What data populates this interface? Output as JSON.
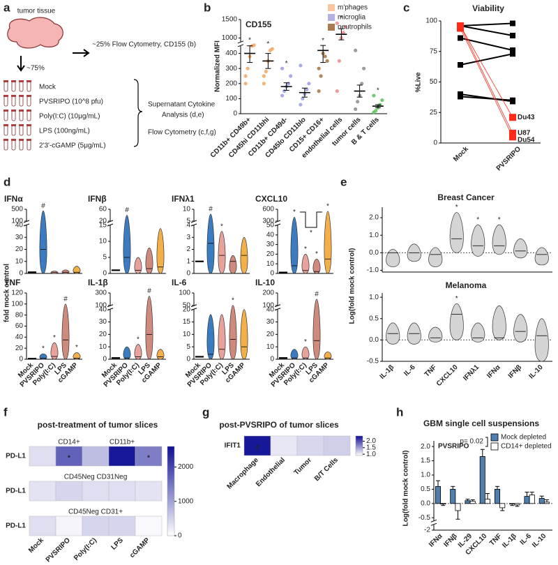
{
  "diagram": {
    "label": "a",
    "tumor": "tumor tissue",
    "flow": "~25% Flow Cytometry, CD155 (b)",
    "split": "~75%",
    "conditions": [
      "Mock",
      "PVSRIPO (10^8 pfu)",
      "Poly(I:C) (10μg/mL)",
      "LPS (100ng/mL)",
      "2'3'-cGAMP (5μg/mL)"
    ],
    "outputs": [
      "Supernatant Cytokine",
      "Analysis (d,e)",
      "Flow Cytometry (c,f,g)"
    ]
  },
  "chart_data": [
    {
      "type": "dot",
      "label": "b",
      "title": "CD155",
      "ylabel": "Normalized MFI",
      "categories": [
        "CD11b+ CD49b+",
        "CD45hi CD11bhi",
        "CD11b+ CD49d-",
        "CD45lo CD11blo",
        "CD15+ CD16+",
        "endothelial cells",
        "tumor cells",
        "B & T cells"
      ],
      "colors": [
        "#f5a55c",
        "#f5a55c",
        "#9b9ee0",
        "#9b9ee0",
        "#a4733f",
        "#f08c8c",
        "#8c8c8c",
        "#5cbf5c"
      ],
      "values": [
        400,
        350,
        180,
        140,
        420,
        1100,
        150,
        50
      ],
      "errors": [
        60,
        50,
        25,
        30,
        80,
        150,
        40,
        10
      ],
      "points": [
        [
          250,
          300,
          380,
          450,
          520,
          200
        ],
        [
          200,
          280,
          350,
          420,
          430,
          250
        ],
        [
          120,
          150,
          180,
          200,
          250,
          300
        ],
        [
          60,
          100,
          130,
          160,
          200,
          320
        ],
        [
          150,
          250,
          400,
          380,
          350,
          300
        ],
        [
          150,
          350,
          1000,
          1150,
          1300,
          1400
        ],
        [
          30,
          80,
          120,
          200,
          300,
          420
        ],
        [
          10,
          20,
          40,
          60,
          90,
          120
        ]
      ],
      "stars": [
        "*",
        "*",
        "*",
        null,
        "*",
        "*",
        null,
        "*"
      ],
      "legend": [
        {
          "name": "m'phages",
          "color": "#f8c7a0"
        },
        {
          "name": "microglia",
          "color": "#b4b3e0"
        },
        {
          "name": "neutrophils",
          "color": "#a97c50"
        }
      ],
      "ylim": [
        0,
        1500
      ],
      "ybreak": [
        450,
        900
      ],
      "yticks": [
        0,
        100,
        200,
        300,
        400,
        1000,
        1500
      ]
    },
    {
      "type": "line",
      "label": "c",
      "title": "Viability",
      "ylabel": "%Live",
      "categories": [
        "Mock",
        "PVSRIPO"
      ],
      "ylim": [
        0,
        100
      ],
      "yticks": [
        0,
        25,
        50,
        75,
        100
      ],
      "series": [
        {
          "color": "#000000",
          "values": [
            96,
            98
          ]
        },
        {
          "color": "#000000",
          "values": [
            96,
            88
          ]
        },
        {
          "color": "#000000",
          "values": [
            86,
            76
          ]
        },
        {
          "color": "#000000",
          "values": [
            64,
            73
          ]
        },
        {
          "color": "#000000",
          "values": [
            40,
            34
          ]
        },
        {
          "color": "#000000",
          "values": [
            38,
            35
          ]
        },
        {
          "name": "Du43",
          "color": "#ff2a1a",
          "values": [
            96,
            21
          ]
        },
        {
          "name": "U87",
          "color": "#ff2a1a",
          "values": [
            96,
            8
          ]
        },
        {
          "name": "Du54",
          "color": "#ff2a1a",
          "values": [
            94,
            5
          ]
        }
      ]
    },
    {
      "type": "violin",
      "label": "d",
      "title": "IFNα",
      "ylabel": "fold mock control",
      "colors": [
        "#000000",
        "#3b7bbf",
        "#e8a29c",
        "#cf8a7e",
        "#f3b04a"
      ],
      "values": [
        1,
        20,
        1,
        1,
        1
      ],
      "max": [
        1,
        450,
        2,
        3,
        6
      ],
      "marks": [
        null,
        "#",
        null,
        null,
        null
      ],
      "ylim": [
        0,
        500
      ],
      "ybreak": [
        40,
        100
      ],
      "yticks": [
        0,
        10,
        20,
        30,
        40,
        100,
        500
      ]
    },
    {
      "type": "violin",
      "title": "IFNβ",
      "colors": [
        "#000000",
        "#3b7bbf",
        "#e8a29c",
        "#cf8a7e",
        "#f3b04a"
      ],
      "values": [
        1,
        5,
        1,
        1.5,
        2
      ],
      "max": [
        1,
        40,
        5,
        8,
        14
      ],
      "marks": [
        null,
        "#",
        null,
        null,
        null
      ],
      "ylim": [
        0,
        60
      ],
      "ybreak": [
        15,
        20
      ],
      "yticks": [
        0,
        5,
        10,
        15,
        20,
        60
      ]
    },
    {
      "type": "violin",
      "title": "IFNλ1",
      "colors": [
        "#000000",
        "#3b7bbf",
        "#e8a29c",
        "#cf8a7e",
        "#f3b04a"
      ],
      "values": [
        1,
        2.5,
        1.5,
        1,
        1.5
      ],
      "max": [
        1,
        8,
        3.5,
        1.5,
        3
      ],
      "marks": [
        null,
        "#",
        "*",
        null,
        null
      ],
      "ylim": [
        0,
        10
      ],
      "ybreak": [
        4,
        5
      ],
      "yticks": [
        0,
        1,
        2,
        3,
        4,
        5,
        10
      ]
    },
    {
      "type": "violin",
      "title": "CXCL10",
      "colors": [
        "#000000",
        "#3b7bbf",
        "#e8a29c",
        "#cf8a7e",
        "#f3b04a"
      ],
      "values": [
        1,
        8,
        3,
        2,
        15
      ],
      "max": [
        1,
        400,
        20,
        15,
        550
      ],
      "marks": [
        null,
        "*",
        "*",
        "*",
        "*"
      ],
      "bracket": "*",
      "ylim": [
        0,
        600
      ],
      "ybreak": [
        50,
        300
      ],
      "yticks": [
        0,
        10,
        20,
        30,
        40,
        50,
        300,
        600
      ]
    },
    {
      "type": "violin",
      "title": "TNF",
      "categories": [
        "Mock",
        "PVSRIPO",
        "Poly(I:C)",
        "LPS",
        "cGAMP"
      ],
      "colors": [
        "#000000",
        "#3b7bbf",
        "#e8a29c",
        "#cf8a7e",
        "#f3b04a"
      ],
      "values": [
        1,
        2,
        5,
        35,
        2
      ],
      "max": [
        1,
        10,
        30,
        100,
        12
      ],
      "marks": [
        null,
        "*",
        "*",
        "#",
        "*"
      ],
      "ylim": [
        0,
        120
      ],
      "yticks": [
        0,
        20,
        40,
        60,
        80,
        100,
        120
      ]
    },
    {
      "type": "violin",
      "title": "IL-1β",
      "categories": [
        "Mock",
        "PVSRIPO",
        "Poly(I:C)",
        "LPS",
        "cGAMP"
      ],
      "colors": [
        "#000000",
        "#3b7bbf",
        "#e8a29c",
        "#cf8a7e",
        "#f3b04a"
      ],
      "values": [
        1,
        1,
        2,
        20,
        2
      ],
      "max": [
        1,
        10,
        12,
        250,
        8
      ],
      "marks": [
        null,
        null,
        "*",
        "#",
        null
      ],
      "ylim": [
        0,
        300
      ],
      "ybreak": [
        40,
        100
      ],
      "yticks": [
        0,
        10,
        20,
        30,
        40,
        100,
        300
      ]
    },
    {
      "type": "violin",
      "title": "IL-6",
      "categories": [
        "Mock",
        "PVSRIPO",
        "Poly(I:C)",
        "LPS",
        "cGAMP"
      ],
      "colors": [
        "#000000",
        "#3b7bbf",
        "#e8a29c",
        "#cf8a7e",
        "#f3b04a"
      ],
      "values": [
        1,
        2,
        4,
        8,
        5
      ],
      "max": [
        1,
        18,
        18,
        50,
        20
      ],
      "marks": [
        null,
        null,
        null,
        "*",
        null
      ],
      "ylim": [
        0,
        100
      ],
      "ybreak": [
        20,
        50
      ],
      "yticks": [
        0,
        5,
        10,
        15,
        20,
        50,
        100
      ]
    },
    {
      "type": "violin",
      "title": "IL-10",
      "categories": [
        "Mock",
        "PVSRIPO",
        "Poly(I:C)",
        "LPS",
        "cGAMP"
      ],
      "colors": [
        "#000000",
        "#3b7bbf",
        "#e8a29c",
        "#cf8a7e",
        "#f3b04a"
      ],
      "values": [
        1,
        1,
        1,
        15,
        1
      ],
      "max": [
        1,
        8,
        10,
        150,
        6
      ],
      "marks": [
        null,
        null,
        "*",
        "#",
        null
      ],
      "ylim": [
        0,
        200
      ],
      "ybreak": [
        40,
        100
      ],
      "yticks": [
        0,
        10,
        20,
        30,
        40,
        100,
        200
      ]
    },
    {
      "type": "violin",
      "label": "e",
      "title": "Breast Cancer",
      "ylabel": "Log(fold mock control)",
      "color": "#d4d4d4",
      "zero_line": true,
      "min": [
        -0.8,
        -0.5,
        -0.8,
        0,
        -0.2,
        -0.1,
        -0.3,
        -0.7
      ],
      "values": [
        0,
        0,
        -0.1,
        0.8,
        0.4,
        0.4,
        0.1,
        -0.1
      ],
      "max": [
        0.2,
        0.5,
        0.3,
        2.3,
        1.6,
        1.6,
        0.8,
        0.3
      ],
      "marks": [
        null,
        null,
        null,
        "*",
        "*",
        "*",
        null,
        null
      ],
      "ylim": [
        -1.1,
        2.6
      ],
      "yticks": [
        {
          "value": -1,
          "label": "-1.0"
        },
        {
          "value": 0,
          "label": "0.0"
        },
        {
          "value": 1,
          "label": "1.0"
        },
        {
          "value": 2,
          "label": "2.0"
        }
      ]
    },
    {
      "type": "violin",
      "title": "Melanoma",
      "categories": [
        "IL-1β",
        "IL-6",
        "TNF",
        "CXCL10",
        "IFNλ1",
        "IFNα",
        "IFNβ",
        "IL-10"
      ],
      "color": "#d4d4d4",
      "zero_line": true,
      "min": [
        -0.1,
        -0.1,
        -0.05,
        0,
        -0.05,
        0,
        -0.05,
        -0.5
      ],
      "values": [
        0.15,
        0.15,
        0.05,
        0.6,
        0.05,
        0.05,
        0.2,
        0.1
      ],
      "max": [
        0.4,
        0.4,
        0.3,
        0.85,
        0.4,
        0.8,
        0.6,
        0.5
      ],
      "marks": [
        null,
        null,
        null,
        "*",
        null,
        null,
        null,
        null
      ],
      "ylim": [
        -0.5,
        1.1
      ],
      "yticks": [
        {
          "value": -0.5,
          "label": "-0.5"
        },
        {
          "value": 0,
          "label": "0.0"
        },
        {
          "value": 0.5,
          "label": "0.5"
        },
        {
          "value": 1,
          "label": "1.0"
        }
      ]
    },
    {
      "type": "heatmap",
      "label": "f",
      "title": "post-treatment of tumor slices",
      "columns": [
        "Mock",
        "PVSRIPO",
        "Poly(I:C)",
        "LPS",
        "cGAMP"
      ],
      "rows": [
        {
          "label": "PD-L1",
          "headers": [
            "CD14+",
            "CD11b+"
          ],
          "values": [
            350,
            1700,
            700,
            2500,
            1400
          ],
          "marks": [
            null,
            "*",
            null,
            null,
            "*"
          ]
        },
        {
          "label": "PD-L1",
          "headers": [
            "CD45Neg CD31Neg"
          ],
          "values": [
            300,
            450,
            350,
            350,
            300
          ]
        },
        {
          "label": "PD-L1",
          "headers": [
            "CD45Neg CD31+"
          ],
          "values": [
            350,
            120,
            450,
            450,
            60
          ]
        }
      ],
      "zlim": [
        0,
        2600
      ],
      "zticks": [
        0,
        1000,
        2000
      ],
      "color": "#0f0f96"
    },
    {
      "type": "heatmap",
      "label": "g",
      "title": "post-PVSRIPO of tumor slices",
      "columns": [
        "Macrophage",
        "Endothelial",
        "Tumor",
        "B/T Cells"
      ],
      "rows": [
        {
          "label": "IFIT1",
          "values": [
            2.35,
            1.05,
            1.15,
            1.2
          ],
          "marks": [
            "#",
            null,
            null,
            null
          ]
        }
      ],
      "zlim": [
        0.9,
        2.4
      ],
      "zticks": [
        {
          "value": 1,
          "label": "1.0"
        },
        {
          "value": 1.5,
          "label": "1.5"
        },
        {
          "value": 2,
          "label": "2.0"
        }
      ],
      "color": "#0f0f96"
    },
    {
      "type": "bar",
      "label": "h",
      "title": "GBM single cell suspensions",
      "subtitle": "PVSRIPO",
      "annotation": "p= 0.02",
      "ylabel": "Log(fold mock control)",
      "zero_line": true,
      "categories": [
        "IFNα",
        "IFNβ",
        "IL-29",
        "CXCL10",
        "TNF",
        "IL-1β",
        "IL-6",
        "IL-10"
      ],
      "series": [
        {
          "name": "Mock depleted",
          "color": "#4f7fae",
          "values": [
            0.6,
            0.5,
            0.1,
            1.65,
            0.5,
            -0.02,
            0.25,
            0.18
          ],
          "errors": [
            0.2,
            0.1,
            0.05,
            0.25,
            0.1,
            0.05,
            0.15,
            0.08
          ]
        },
        {
          "name": "CD14+ depleted",
          "color": "#ffffff",
          "values": [
            -0.02,
            -0.25,
            0.08,
            0.15,
            -0.15,
            -0.05,
            0.3,
            0.05
          ],
          "errors": [
            0.05,
            0.3,
            0.05,
            0.2,
            0.1,
            0.05,
            0.1,
            0.08
          ]
        }
      ],
      "ylim": [
        -2,
        2.2
      ],
      "ybreak": [
        -1.9,
        -0.6
      ],
      "yticks": [
        -2,
        {
          "value": -0.5,
          "label": "-0.5"
        },
        {
          "value": 0,
          "label": "0.0"
        },
        {
          "value": 0.5,
          "label": "0.5"
        },
        {
          "value": 1,
          "label": "1.0"
        },
        {
          "value": 1.5,
          "label": "1.5"
        },
        {
          "value": 2,
          "label": "2.0"
        }
      ]
    }
  ]
}
